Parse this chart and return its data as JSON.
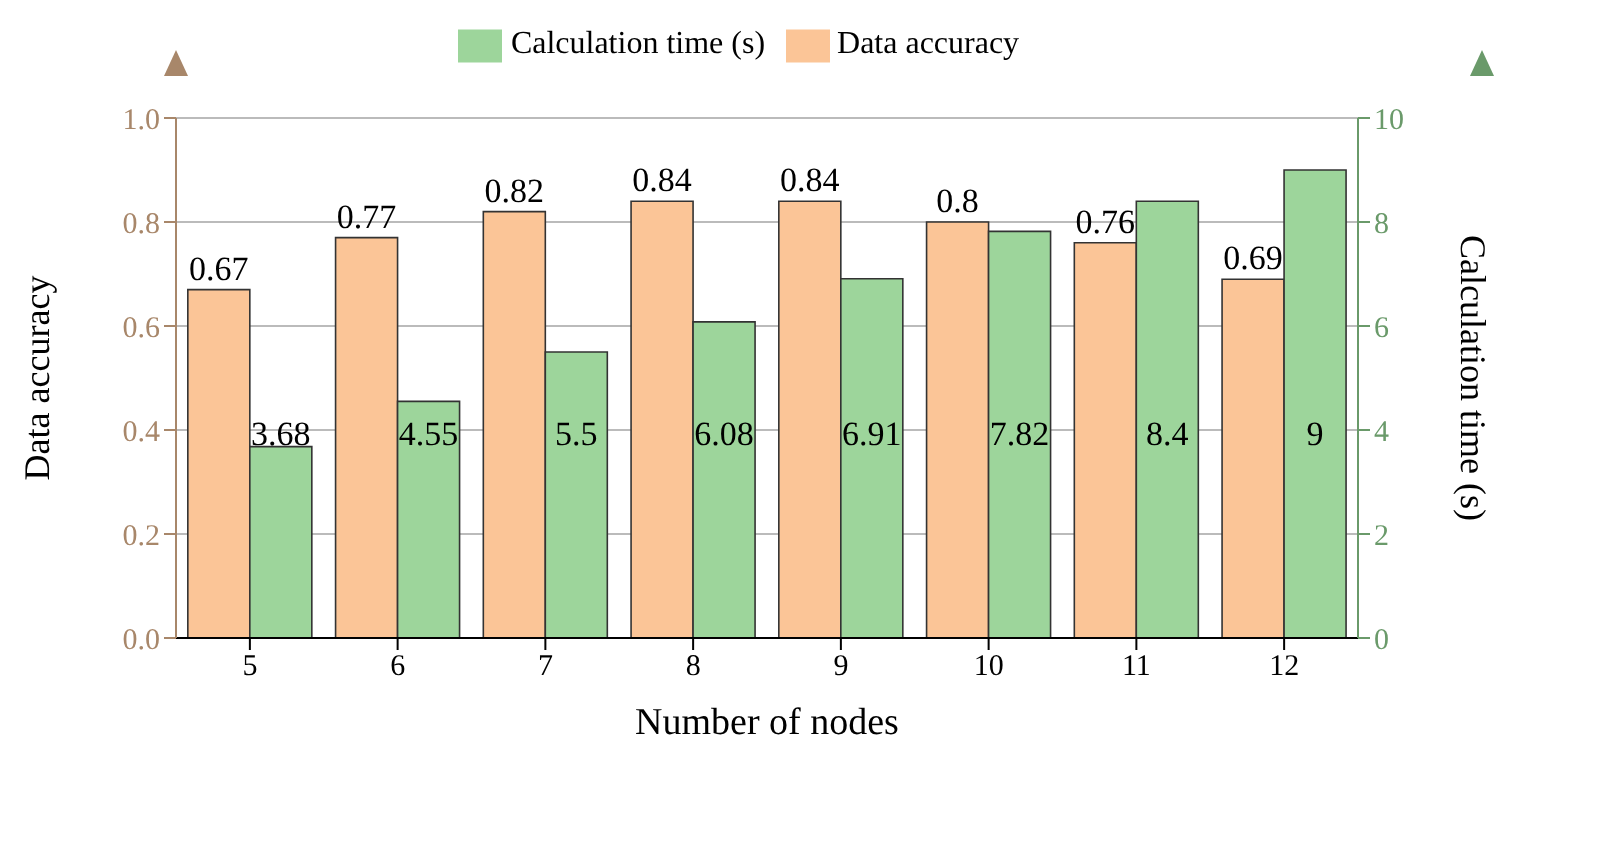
{
  "chart_data": {
    "type": "bar",
    "xlabel": "Number of nodes",
    "ylabel": "Data accuracy",
    "y2label": "Calculation time (s)",
    "categories": [
      "5",
      "6",
      "7",
      "8",
      "9",
      "10",
      "11",
      "12"
    ],
    "series": [
      {
        "name": "Data accuracy",
        "color": "#fbc597",
        "values": [
          0.67,
          0.77,
          0.82,
          0.84,
          0.84,
          0.8,
          0.76,
          0.69
        ]
      },
      {
        "name": "Calculation time (s)",
        "color": "#9dd59b",
        "axis": "y2",
        "values": [
          3.68,
          4.55,
          5.5,
          6.08,
          6.91,
          7.82,
          8.4,
          9
        ]
      }
    ],
    "ylim": [
      0,
      1
    ],
    "yticks": [
      {
        "value": 0,
        "label": "0.0"
      },
      0.2,
      0.4,
      0.6,
      0.8,
      {
        "value": 1,
        "label": "1.0"
      }
    ],
    "y2lim": [
      0,
      10
    ],
    "y2ticks": [
      0,
      2,
      4,
      6,
      8,
      10
    ],
    "grid": "y",
    "legend": "top",
    "data_labels": true
  }
}
